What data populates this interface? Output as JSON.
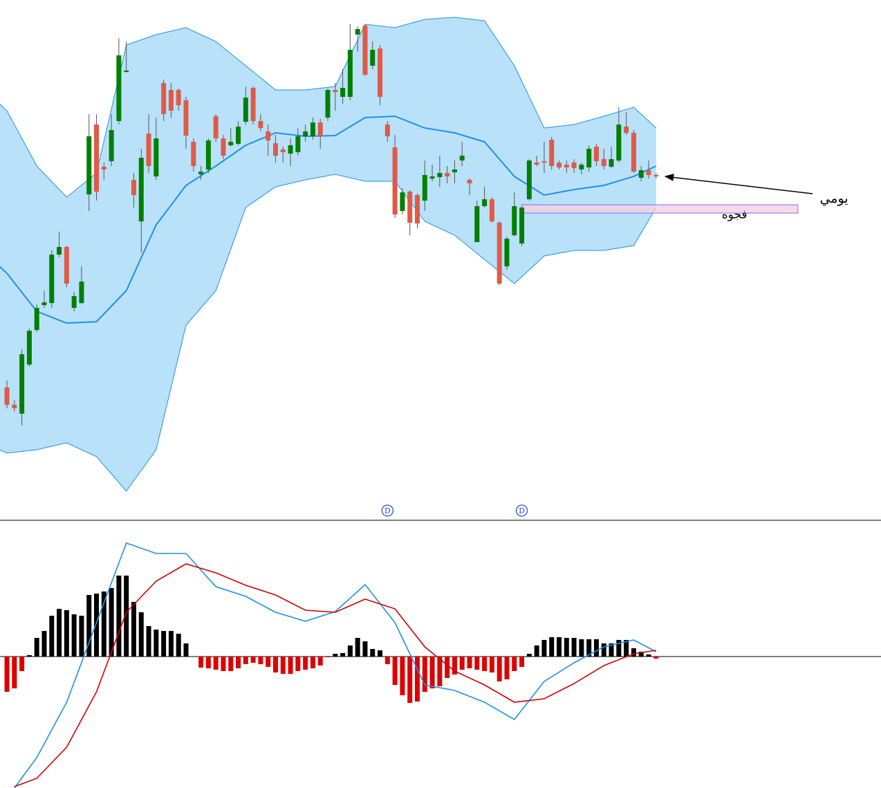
{
  "chart_data": [
    {
      "type": "candlestick",
      "xlim": [
        -0.93,
        117.14
      ],
      "ylim": [
        0,
        750
      ],
      "up_color": "#008000",
      "down_color": "#e05a47",
      "candles": [
        [
          190,
          200,
          160,
          165
        ],
        [
          165,
          172,
          155,
          160
        ],
        [
          152,
          245,
          135,
          238
        ],
        [
          223,
          275,
          220,
          272
        ],
        [
          273,
          310,
          270,
          305
        ],
        [
          309,
          330,
          305,
          313
        ],
        [
          312,
          388,
          305,
          382
        ],
        [
          382,
          415,
          378,
          393
        ],
        [
          393,
          395,
          335,
          340
        ],
        [
          305,
          328,
          300,
          322
        ],
        [
          312,
          365,
          310,
          343
        ],
        [
          469,
          585,
          445,
          553
        ],
        [
          570,
          585,
          460,
          473
        ],
        [
          509,
          515,
          490,
          505
        ],
        [
          517,
          585,
          510,
          562
        ],
        [
          575,
          695,
          570,
          670
        ],
        [
          646,
          690,
          645,
          648
        ],
        [
          490,
          500,
          450,
          468
        ],
        [
          430,
          535,
          385,
          522
        ],
        [
          557,
          585,
          500,
          510
        ],
        [
          495,
          580,
          490,
          550
        ],
        [
          630,
          635,
          575,
          585
        ],
        [
          620,
          630,
          580,
          590
        ],
        [
          620,
          622,
          590,
          598
        ],
        [
          605,
          610,
          535,
          554
        ],
        [
          545,
          550,
          502,
          510
        ],
        [
          498,
          510,
          490,
          502
        ],
        [
          505,
          550,
          500,
          547
        ],
        [
          582,
          585,
          545,
          550
        ],
        [
          550,
          555,
          520,
          525
        ],
        [
          540,
          565,
          538,
          545
        ],
        [
          542,
          575,
          540,
          567
        ],
        [
          574,
          625,
          570,
          609
        ],
        [
          623,
          625,
          570,
          575
        ],
        [
          575,
          585,
          560,
          565
        ],
        [
          560,
          570,
          525,
          547
        ],
        [
          543,
          555,
          515,
          525
        ],
        [
          534,
          538,
          515,
          530
        ],
        [
          528,
          550,
          510,
          540
        ],
        [
          530,
          565,
          525,
          553
        ],
        [
          553,
          570,
          545,
          560
        ],
        [
          553,
          580,
          548,
          573
        ],
        [
          573,
          578,
          535,
          553
        ],
        [
          580,
          622,
          575,
          620
        ],
        [
          620,
          630,
          590,
          617
        ],
        [
          610,
          650,
          600,
          623
        ],
        [
          610,
          715,
          605,
          678
        ],
        [
          700,
          712,
          675,
          708
        ],
        [
          713,
          715,
          640,
          642
        ],
        [
          655,
          690,
          650,
          678
        ],
        [
          680,
          685,
          598,
          610
        ],
        [
          570,
          575,
          545,
          553
        ],
        [
          537,
          555,
          435,
          440
        ],
        [
          445,
          478,
          440,
          472
        ],
        [
          473,
          475,
          410,
          428
        ],
        [
          468,
          470,
          420,
          427
        ],
        [
          460,
          518,
          445,
          497
        ],
        [
          492,
          512,
          488,
          495
        ],
        [
          494,
          525,
          480,
          500
        ],
        [
          500,
          510,
          485,
          495
        ],
        [
          501,
          518,
          485,
          505
        ],
        [
          518,
          545,
          510,
          525
        ],
        [
          490,
          492,
          468,
          485
        ],
        [
          400,
          460,
          400,
          452
        ],
        [
          452,
          480,
          450,
          462
        ],
        [
          462,
          465,
          428,
          430
        ],
        [
          428,
          430,
          338,
          340
        ],
        [
          365,
          408,
          360,
          405
        ],
        [
          410,
          472,
          408,
          452
        ],
        [
          398,
          452,
          394,
          450
        ],
        [
          462,
          520,
          460,
          518
        ],
        [
          515,
          525,
          510,
          512
        ],
        [
          517,
          545,
          500,
          515
        ],
        [
          548,
          552,
          505,
          510
        ],
        [
          515,
          518,
          505,
          508
        ],
        [
          512,
          518,
          500,
          508
        ],
        [
          515,
          520,
          500,
          507
        ],
        [
          505,
          515,
          498,
          512
        ],
        [
          508,
          540,
          502,
          535
        ],
        [
          538,
          542,
          510,
          517
        ],
        [
          520,
          535,
          505,
          510
        ],
        [
          509,
          538,
          507,
          520
        ],
        [
          518,
          595,
          515,
          570
        ],
        [
          567,
          588,
          555,
          558
        ],
        [
          558,
          562,
          500,
          502
        ],
        [
          493,
          510,
          488,
          504
        ],
        [
          504,
          518,
          492,
          497
        ],
        [
          497,
          500,
          492,
          495
        ]
      ],
      "bands": {
        "color": "#1e90e6",
        "fill": "#b9e1fa",
        "x": [
          -1,
          0,
          4,
          8,
          12,
          16,
          20,
          24,
          28,
          32,
          36,
          40,
          44,
          48,
          52,
          56,
          60,
          64,
          68,
          72,
          76,
          80,
          84,
          87
        ],
        "upper": [
          600,
          590,
          510,
          465,
          500,
          685,
          700,
          710,
          690,
          655,
          620,
          620,
          625,
          715,
          710,
          722,
          725,
          720,
          655,
          565,
          570,
          582,
          595,
          565
        ],
        "middle": [
          365,
          355,
          300,
          283,
          285,
          330,
          425,
          482,
          510,
          540,
          558,
          553,
          554,
          580,
          582,
          565,
          558,
          545,
          495,
          468,
          476,
          482,
          495,
          510
        ],
        "lower": [
          100,
          95,
          100,
          110,
          90,
          40,
          100,
          280,
          330,
          450,
          480,
          490,
          498,
          488,
          488,
          430,
          410,
          375,
          340,
          380,
          388,
          388,
          395,
          450
        ]
      },
      "gap": {
        "label": "فجوه",
        "x": [
          69,
          106
        ],
        "range": [
          442,
          454
        ],
        "color": "#f8cfe0"
      },
      "events": [
        {
          "label": "D",
          "x": 51
        },
        {
          "label": "D",
          "x": 69
        }
      ],
      "annotation": "يومي"
    },
    {
      "type": "macd",
      "xlim": [
        -0.93,
        117.14
      ],
      "ylim": [
        -190,
        197
      ],
      "pos_color": "#000000",
      "neg_color": "#dd0000",
      "histogram": [
        -51,
        -46,
        -21,
        2,
        27,
        37,
        59,
        69,
        67,
        61,
        59,
        89,
        91,
        94,
        99,
        117,
        117,
        79,
        64,
        44,
        39,
        37,
        37,
        33,
        19,
        0,
        -16,
        -17,
        -19,
        -21,
        -21,
        -17,
        -11,
        -9,
        -11,
        -15,
        -23,
        -25,
        -25,
        -21,
        -19,
        -17,
        -13,
        -1,
        4,
        5,
        16,
        27,
        22,
        11,
        9,
        -11,
        -41,
        -56,
        -67,
        -65,
        -51,
        -46,
        -43,
        -31,
        -26,
        -19,
        -17,
        -19,
        -21,
        -23,
        -36,
        -33,
        -21,
        -15,
        4,
        16,
        24,
        28,
        28,
        27,
        27,
        25,
        25,
        25,
        19,
        19,
        24,
        24,
        12,
        7,
        3,
        -3
      ],
      "series": [
        {
          "color": "#1e90e6",
          "x": [
            1,
            4,
            8,
            12,
            16,
            20,
            24,
            28,
            32,
            36,
            40,
            44,
            48,
            52,
            56,
            60,
            64,
            68,
            72,
            76,
            80,
            84,
            87
          ],
          "values": [
            -190,
            -146,
            -66,
            49,
            164,
            149,
            149,
            101,
            87,
            64,
            51,
            65,
            104,
            49,
            -41,
            -49,
            -66,
            -91,
            -36,
            -9,
            14,
            24,
            7
          ]
        },
        {
          "color": "#d00000",
          "x": [
            1,
            4,
            8,
            12,
            16,
            20,
            24,
            28,
            32,
            36,
            40,
            44,
            48,
            52,
            56,
            60,
            64,
            68,
            72,
            76,
            80,
            84,
            87
          ],
          "values": [
            -188,
            -176,
            -131,
            -51,
            64,
            109,
            134,
            121,
            103,
            89,
            67,
            64,
            83,
            69,
            14,
            -21,
            -41,
            -66,
            -61,
            -39,
            -13,
            4,
            9
          ]
        }
      ]
    }
  ]
}
